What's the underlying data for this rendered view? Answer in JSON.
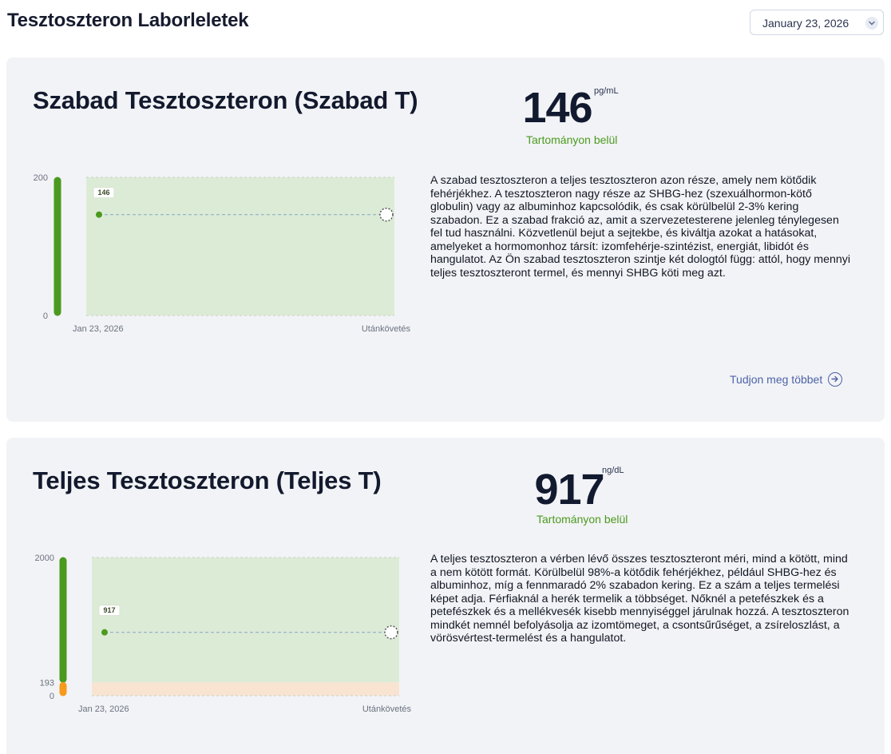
{
  "header": {
    "title": "Tesztoszteron Laborleletek",
    "date_select": {
      "value": "January 23, 2026"
    }
  },
  "colors": {
    "in_range": "#4b9a1f",
    "range_band": "#dcebd6",
    "low_band": "#f9e4d2",
    "low_marker": "#f59a1b",
    "link": "#4c63a8"
  },
  "cards": [
    {
      "title": "Szabad Tesztoszteron (Szabad T)",
      "value": "146",
      "unit": "pg/mL",
      "status": "Tartományon belül",
      "description": "A szabad tesztoszteron a teljes tesztoszteron azon része, amely nem kötődik fehérjékhez. A tesztoszteron nagy része az SHBG-hez (szexuálhormon-kötő globulin) vagy az albuminhoz kapcsolódik, és csak körülbelül 2-3% kering szabadon. Ez a szabad frakció az, amit a szervezetesterene jelenleg ténylegesen fel tud használni. Közvetlenül bejut a sejtekbe, és kiváltja azokat a hatásokat, amelyeket a hormomonhoz társít: izomfehérje-szintézist, energiát, libidót és hangulatot. Az Ön szabad tesztoszteron szintje két dologtól függ: attól, hogy mennyi teljes tesztoszteront termel, és mennyi SHBG köti meg azt.",
      "learn_more": "Tudjon meg többet",
      "chart_data": {
        "type": "line",
        "x": [
          "Jan 23, 2026",
          "Utánkövetés"
        ],
        "series": [
          {
            "values": [
              146,
              null
            ]
          }
        ],
        "point_label": "146",
        "ylim": [
          0,
          200
        ],
        "y_ticks": [
          "200",
          "0"
        ],
        "range_min": 0,
        "range_max": 200
      }
    },
    {
      "title": "Teljes Tesztoszteron (Teljes T)",
      "value": "917",
      "unit": "ng/dL",
      "status": "Tartományon belül",
      "description": "A teljes tesztoszteron a vérben lévő összes tesztoszteront méri, mind a kötött, mind a nem kötött formát. Körülbelül 98%-a kötődik fehérjékhez, például SHBG-hez és albuminhoz, míg a fennmaradó 2% szabadon kering. Ez a szám a teljes termelési képet adja. Férfiaknál a herék termelik a többséget. Nőknél a petefészkek és a petefészkek és a mellékvesék kisebb mennyiséggel járulnak hozzá. A tesztoszteron mindkét nemnél befolyásolja az izomtömeget, a csontsűrűséget, a zsíreloszlást, a vörösvértest-termelést és a hangulatot.",
      "chart_data": {
        "type": "line",
        "x": [
          "Jan 23, 2026",
          "Utánkövetés"
        ],
        "series": [
          {
            "values": [
              917,
              null
            ]
          }
        ],
        "point_label": "917",
        "ylim": [
          0,
          2000
        ],
        "y_ticks": [
          "2000",
          "193",
          "0"
        ],
        "range_min": 193,
        "range_max": 2000
      }
    }
  ]
}
